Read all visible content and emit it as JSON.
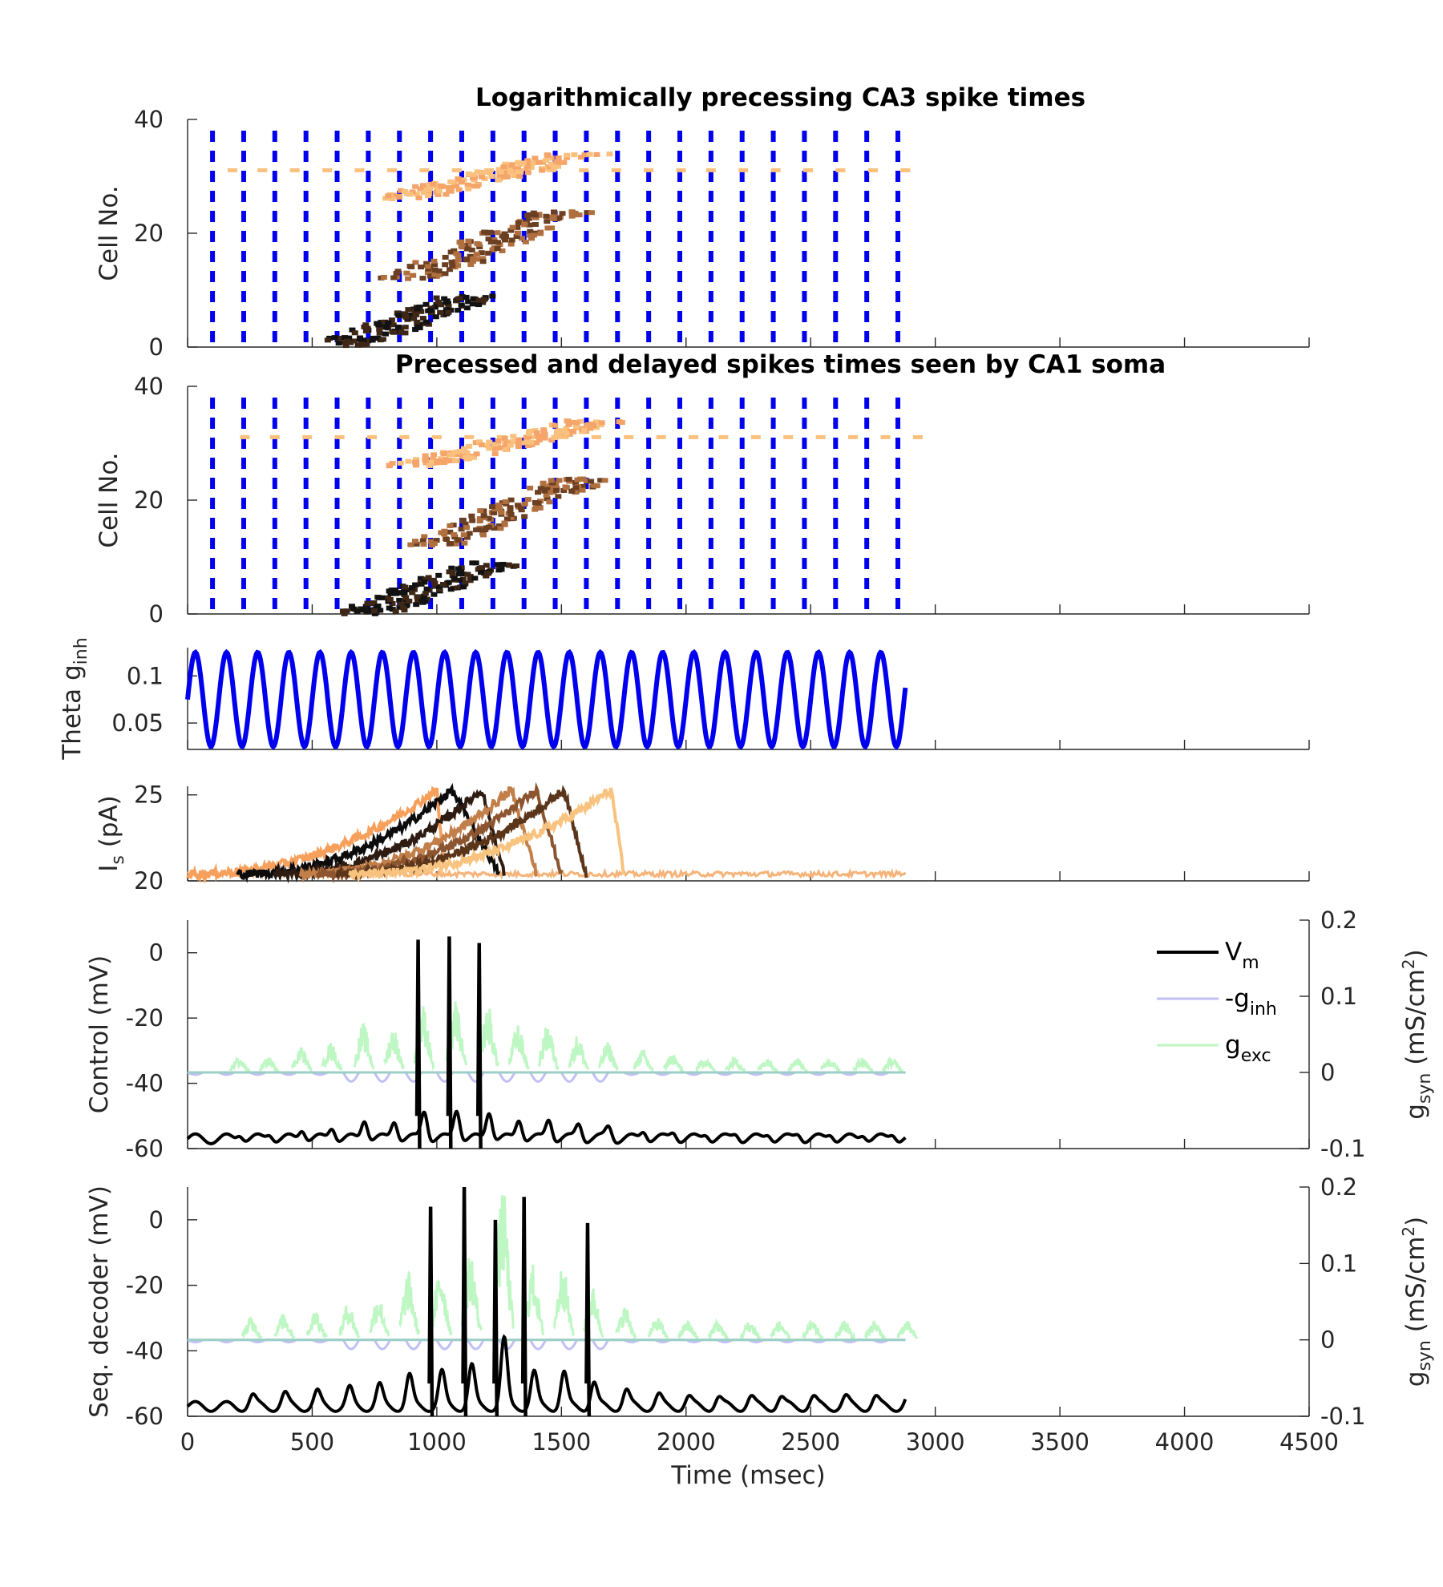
{
  "chart_data": [
    {
      "id": "ca3",
      "type": "scatter",
      "title": "Logarithmically precessing CA3 spike times",
      "ylabel": "Cell No.",
      "xlim": [
        0,
        4500
      ],
      "ylim": [
        0,
        40
      ],
      "yticks": [
        "0",
        "20",
        "40"
      ],
      "theta_troughs_ms": [
        100,
        225,
        350,
        475,
        600,
        725,
        850,
        975,
        1100,
        1225,
        1350,
        1475,
        1600,
        1725,
        1850,
        1975,
        2100,
        2225,
        2350,
        2475,
        2600,
        2725,
        2850
      ],
      "spike_clusters": [
        {
          "cell": 31,
          "times": [
            180,
            300,
            430,
            560,
            690,
            820,
            950,
            1080,
            1210,
            1330,
            1460,
            1590,
            1720,
            1850,
            1980,
            2100,
            2230,
            2360,
            2490,
            2620,
            2750,
            2880
          ]
        },
        {
          "cell_range": [
            26,
            34
          ],
          "times_range": [
            580,
            1800
          ]
        },
        {
          "cell_range": [
            12,
            24
          ],
          "times_range": [
            680,
            1700
          ]
        },
        {
          "cell_range": [
            0,
            9
          ],
          "times_range": [
            420,
            1300
          ]
        }
      ]
    },
    {
      "id": "ca1",
      "type": "scatter",
      "title": "Precessed and delayed spikes times seen by CA1 soma",
      "ylabel": "Cell No.",
      "xlim": [
        0,
        4500
      ],
      "ylim": [
        0,
        40
      ],
      "yticks": [
        "0",
        "20",
        "40"
      ],
      "theta_troughs_ms": [
        100,
        225,
        350,
        475,
        600,
        725,
        850,
        975,
        1100,
        1225,
        1350,
        1475,
        1600,
        1725,
        1850,
        1975,
        2100,
        2225,
        2350,
        2475,
        2600,
        2725,
        2850
      ],
      "spike_clusters": [
        {
          "cell": 31,
          "times": [
            230,
            350,
            480,
            610,
            740,
            870,
            1000,
            1130,
            1260,
            1380,
            1510,
            1640,
            1770,
            1900,
            2030,
            2150,
            2280,
            2410,
            2540,
            2670,
            2800,
            2930
          ]
        },
        {
          "cell_range": [
            26,
            34
          ],
          "times_range": [
            630,
            1900
          ]
        },
        {
          "cell_range": [
            12,
            24
          ],
          "times_range": [
            740,
            1780
          ]
        },
        {
          "cell_range": [
            0,
            9
          ],
          "times_range": [
            500,
            1400
          ]
        }
      ]
    },
    {
      "id": "theta",
      "type": "line",
      "ylabel_main": "Theta g",
      "ylabel_sub": "inh",
      "xlim": [
        0,
        4500
      ],
      "ylim": [
        0.022,
        0.13
      ],
      "yticks": [
        "0.05",
        "0.1"
      ],
      "ytick_values": [
        0.05,
        0.1
      ],
      "series": [
        {
          "period_ms": 125,
          "min": 0.025,
          "max": 0.125,
          "t_end": 2880,
          "color": "#0000ee"
        }
      ]
    },
    {
      "id": "is",
      "type": "line",
      "ylabel_main": "I",
      "ylabel_sub": "s",
      "ylabel_unit": " (pA)",
      "xlim": [
        0,
        4500
      ],
      "ylim": [
        20,
        25.5
      ],
      "yticks": [
        "20",
        "25"
      ],
      "ytick_values": [
        20,
        25
      ],
      "baseline": 20.4,
      "t_end": 2880,
      "ramps": [
        {
          "start": 0,
          "peak_t": 1000,
          "end": 1030,
          "color": "#f7a05c"
        },
        {
          "start": 200,
          "peak_t": 1060,
          "end": 1250,
          "color": "#0c0c0c"
        },
        {
          "start": 350,
          "peak_t": 1180,
          "end": 1270,
          "color": "#2e1c12"
        },
        {
          "start": 450,
          "peak_t": 1300,
          "end": 1400,
          "color": "#c27f4a"
        },
        {
          "start": 520,
          "peak_t": 1400,
          "end": 1500,
          "color": "#8c5530"
        },
        {
          "start": 600,
          "peak_t": 1510,
          "end": 1600,
          "color": "#5a3519"
        },
        {
          "start": 650,
          "peak_t": 1700,
          "end": 1750,
          "color": "#f8c37e"
        }
      ]
    },
    {
      "id": "control",
      "type": "line",
      "ylabel": "Control (mV)",
      "y2label_main": "g",
      "y2label_sub": "syn",
      "y2label_unit": "  (mS/cm",
      "y2label_sup": "2",
      "y2label_close": ")",
      "xlim": [
        0,
        4500
      ],
      "ylim": [
        -60,
        10
      ],
      "yticks": [
        "-60",
        "-40",
        "-20",
        "0"
      ],
      "ytick_values": [
        -60,
        -40,
        -20,
        0
      ],
      "y2lim": [
        -0.1,
        0.2
      ],
      "y2ticks": [
        "-0.1",
        "0",
        "0.1",
        "0.2"
      ],
      "y2tick_values": [
        -0.1,
        0,
        0.1,
        0.2
      ],
      "legend": {
        "position": "top-right",
        "entries": [
          {
            "main": "V",
            "sub": "m",
            "color": "#000000"
          },
          {
            "main": "-g",
            "sub": "inh",
            "color": "#c0c0f4"
          },
          {
            "main": "g",
            "sub": "exc",
            "color": "#bff7c4"
          }
        ]
      },
      "spike_times": [
        925,
        1050,
        1170
      ],
      "spike_peak_mV": [
        4,
        5,
        3
      ],
      "exc_bursts": [
        {
          "t": 180,
          "g": 0.02
        },
        {
          "t": 300,
          "g": 0.02
        },
        {
          "t": 430,
          "g": 0.035
        },
        {
          "t": 550,
          "g": 0.04
        },
        {
          "t": 680,
          "g": 0.065
        },
        {
          "t": 800,
          "g": 0.06
        },
        {
          "t": 920,
          "g": 0.09
        },
        {
          "t": 1050,
          "g": 0.095
        },
        {
          "t": 1180,
          "g": 0.09
        },
        {
          "t": 1300,
          "g": 0.065
        },
        {
          "t": 1420,
          "g": 0.065
        },
        {
          "t": 1540,
          "g": 0.05
        },
        {
          "t": 1660,
          "g": 0.04
        },
        {
          "t": 1800,
          "g": 0.03
        },
        {
          "t": 1920,
          "g": 0.025
        },
        {
          "t": 2050,
          "g": 0.02
        },
        {
          "t": 2170,
          "g": 0.02
        },
        {
          "t": 2300,
          "g": 0.02
        },
        {
          "t": 2420,
          "g": 0.02
        },
        {
          "t": 2550,
          "g": 0.02
        },
        {
          "t": 2680,
          "g": 0.02
        },
        {
          "t": 2800,
          "g": 0.02
        }
      ]
    },
    {
      "id": "decoder",
      "type": "line",
      "ylabel": "Seq. decoder (mV)",
      "y2label_main": "g",
      "y2label_sub": "syn",
      "y2label_unit": "  (mS/cm",
      "y2label_sup": "2",
      "y2label_close": ")",
      "xlabel": "Time (msec)",
      "xlim": [
        0,
        4500
      ],
      "xticks": [
        "0",
        "500",
        "1000",
        "1500",
        "2000",
        "2500",
        "3000",
        "3500",
        "4000",
        "4500"
      ],
      "xtick_values": [
        0,
        500,
        1000,
        1500,
        2000,
        2500,
        3000,
        3500,
        4000,
        4500
      ],
      "ylim": [
        -60,
        10
      ],
      "yticks": [
        "-60",
        "-40",
        "-20",
        "0"
      ],
      "ytick_values": [
        -60,
        -40,
        -20,
        0
      ],
      "y2lim": [
        -0.1,
        0.2
      ],
      "y2ticks": [
        "-0.1",
        "0",
        "0.1",
        "0.2"
      ],
      "y2tick_values": [
        -0.1,
        0,
        0.1,
        0.2
      ],
      "spike_times": [
        975,
        1110,
        1235,
        1350,
        1605
      ],
      "spike_peak_mV": [
        4,
        10,
        0,
        7,
        -1
      ],
      "exc_bursts": [
        {
          "t": 230,
          "g": 0.03
        },
        {
          "t": 360,
          "g": 0.035
        },
        {
          "t": 490,
          "g": 0.04
        },
        {
          "t": 620,
          "g": 0.05
        },
        {
          "t": 740,
          "g": 0.06
        },
        {
          "t": 860,
          "g": 0.09
        },
        {
          "t": 990,
          "g": 0.1
        },
        {
          "t": 1110,
          "g": 0.12
        },
        {
          "t": 1240,
          "g": 0.2
        },
        {
          "t": 1360,
          "g": 0.1
        },
        {
          "t": 1480,
          "g": 0.1
        },
        {
          "t": 1600,
          "g": 0.07
        },
        {
          "t": 1730,
          "g": 0.045
        },
        {
          "t": 1860,
          "g": 0.03
        },
        {
          "t": 1980,
          "g": 0.025
        },
        {
          "t": 2100,
          "g": 0.025
        },
        {
          "t": 2230,
          "g": 0.025
        },
        {
          "t": 2350,
          "g": 0.025
        },
        {
          "t": 2480,
          "g": 0.025
        },
        {
          "t": 2610,
          "g": 0.025
        },
        {
          "t": 2730,
          "g": 0.025
        },
        {
          "t": 2860,
          "g": 0.025
        }
      ]
    }
  ]
}
